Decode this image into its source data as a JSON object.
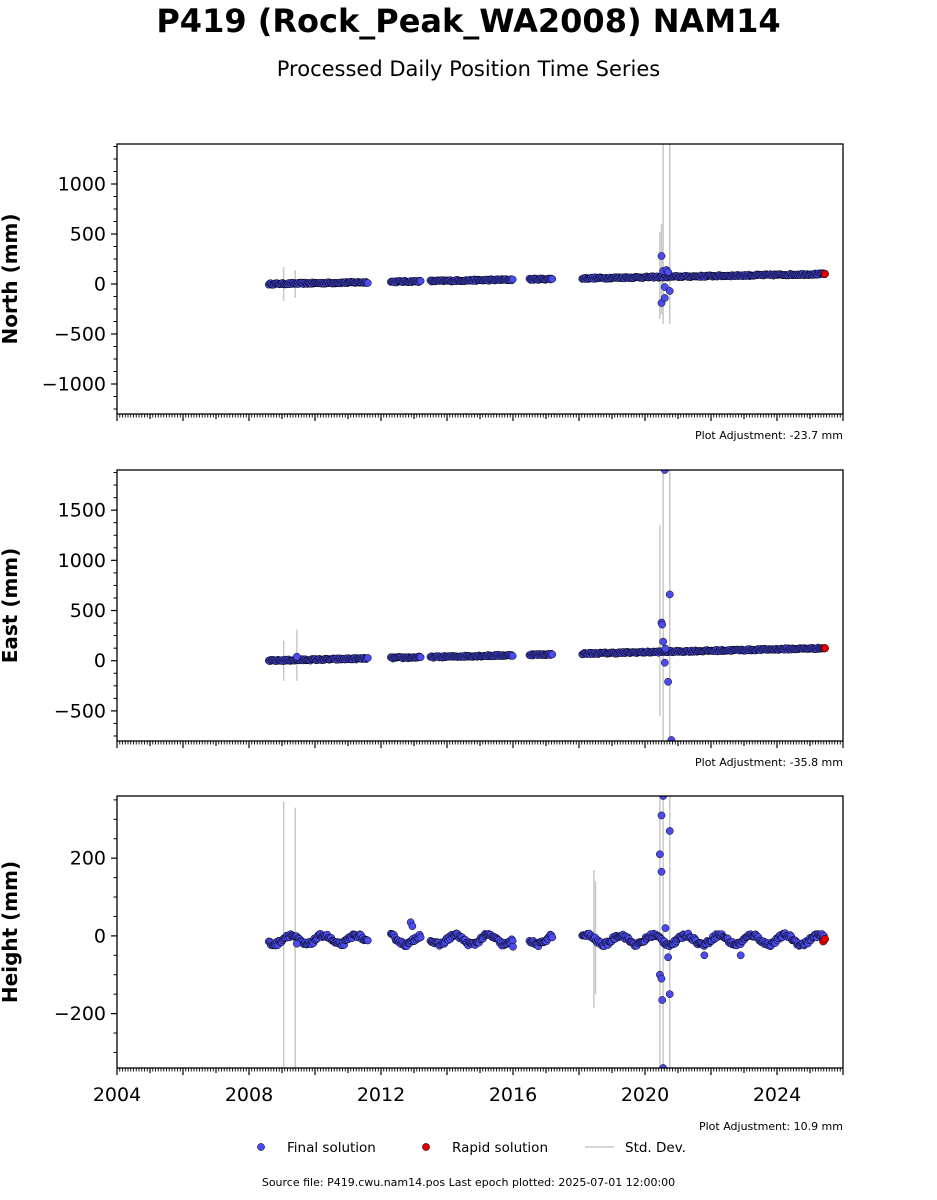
{
  "title": "P419 (Rock_Peak_WA2008) NAM14",
  "subtitle": "Processed Daily Position Time Series",
  "footer": "Source file: P419.cwu.nam14.pos  Last epoch plotted: 2025-07-01 12:00:00",
  "colors": {
    "final": "#4b4bf0",
    "rapid": "#e00000",
    "std_dev": "#c8c8c8",
    "marker_edge": "#000000"
  },
  "legend": {
    "final": "Final solution",
    "rapid": "Rapid solution",
    "std_dev": "Std. Dev."
  },
  "chart_data": [
    {
      "type": "scatter",
      "ylabel": "North (mm)",
      "xlim": [
        2004,
        2026
      ],
      "ylim": [
        -1300,
        1400
      ],
      "yticks": [
        -1000,
        -500,
        0,
        500,
        1000
      ],
      "tick_labels": [
        "−1000",
        "−500",
        "0",
        "500",
        "1000"
      ],
      "adjustment": "Plot Adjustment: -23.7 mm",
      "trend": {
        "x": [
          2008.6,
          2025.45
        ],
        "y": [
          0,
          100
        ]
      },
      "segments": [
        [
          2008.6,
          2011.6
        ],
        [
          2012.3,
          2013.2
        ],
        [
          2013.5,
          2016.0
        ],
        [
          2016.5,
          2017.2
        ],
        [
          2018.1,
          2025.45
        ]
      ],
      "outliers": [
        {
          "x": 2020.5,
          "y": 280
        },
        {
          "x": 2020.5,
          "y": -190
        },
        {
          "x": 2020.55,
          "y": 130
        },
        {
          "x": 2020.6,
          "y": -30
        },
        {
          "x": 2020.65,
          "y": 140
        },
        {
          "x": 2020.7,
          "y": 120
        },
        {
          "x": 2020.75,
          "y": -70
        },
        {
          "x": 2020.6,
          "y": -140
        }
      ],
      "stddev_bars": [
        {
          "x": 2009.05,
          "low": -170,
          "high": 170
        },
        {
          "x": 2009.4,
          "low": -140,
          "high": 140
        },
        {
          "x": 2020.45,
          "low": -350,
          "high": 520
        },
        {
          "x": 2020.55,
          "low": -400,
          "high": 1400
        },
        {
          "x": 2020.75,
          "low": -400,
          "high": 1400
        },
        {
          "x": 2020.5,
          "low": -300,
          "high": 600
        }
      ],
      "rapid": [
        {
          "x": 2025.45,
          "y": 100
        }
      ]
    },
    {
      "type": "scatter",
      "ylabel": "East (mm)",
      "xlim": [
        2004,
        2026
      ],
      "ylim": [
        -800,
        1900
      ],
      "yticks": [
        -500,
        0,
        500,
        1000,
        1500
      ],
      "tick_labels": [
        "−500",
        "0",
        "500",
        "1000",
        "1500"
      ],
      "adjustment": "Plot Adjustment: -35.8 mm",
      "trend": {
        "x": [
          2008.6,
          2025.45
        ],
        "y": [
          0,
          125
        ]
      },
      "segments": [
        [
          2008.6,
          2011.6
        ],
        [
          2012.3,
          2013.2
        ],
        [
          2013.5,
          2016.0
        ],
        [
          2016.5,
          2017.2
        ],
        [
          2018.1,
          2025.45
        ]
      ],
      "outliers": [
        {
          "x": 2020.5,
          "y": 380
        },
        {
          "x": 2020.52,
          "y": 360
        },
        {
          "x": 2020.55,
          "y": 190
        },
        {
          "x": 2020.6,
          "y": -20
        },
        {
          "x": 2020.62,
          "y": 120
        },
        {
          "x": 2020.7,
          "y": -210
        },
        {
          "x": 2020.75,
          "y": 660
        },
        {
          "x": 2020.6,
          "y": 1900
        },
        {
          "x": 2020.8,
          "y": -790
        },
        {
          "x": 2009.45,
          "y": 40
        }
      ],
      "stddev_bars": [
        {
          "x": 2009.05,
          "low": -200,
          "high": 200
        },
        {
          "x": 2009.45,
          "low": -200,
          "high": 310
        },
        {
          "x": 2020.45,
          "low": -550,
          "high": 1350
        },
        {
          "x": 2020.55,
          "low": -800,
          "high": 1900
        },
        {
          "x": 2020.75,
          "low": -800,
          "high": 1900
        }
      ],
      "rapid": [
        {
          "x": 2025.45,
          "y": 125
        }
      ]
    },
    {
      "type": "scatter",
      "ylabel": "Height (mm)",
      "xlim": [
        2004,
        2026
      ],
      "ylim": [
        -340,
        360
      ],
      "yticks": [
        -200,
        0,
        200
      ],
      "tick_labels": [
        "−200",
        "0",
        "200"
      ],
      "xticks": [
        2004,
        2008,
        2012,
        2016,
        2020,
        2024
      ],
      "xtick_labels": [
        "2004",
        "2008",
        "2012",
        "2016",
        "2020",
        "2024"
      ],
      "adjustment": "Plot Adjustment: 10.9 mm",
      "trend": {
        "x": [
          2008.6,
          2025.45
        ],
        "y": [
          -10,
          -10
        ]
      },
      "seasonal_amplitude": 12,
      "segments": [
        [
          2008.6,
          2011.6
        ],
        [
          2012.3,
          2013.2
        ],
        [
          2013.5,
          2016.0
        ],
        [
          2016.5,
          2017.2
        ],
        [
          2018.1,
          2025.45
        ]
      ],
      "outliers": [
        {
          "x": 2009.45,
          "y": -20
        },
        {
          "x": 2012.9,
          "y": 35
        },
        {
          "x": 2012.95,
          "y": 25
        },
        {
          "x": 2020.45,
          "y": 210
        },
        {
          "x": 2020.5,
          "y": 165
        },
        {
          "x": 2020.5,
          "y": 310
        },
        {
          "x": 2020.55,
          "y": 360
        },
        {
          "x": 2020.75,
          "y": 270
        },
        {
          "x": 2020.45,
          "y": -100
        },
        {
          "x": 2020.5,
          "y": -110
        },
        {
          "x": 2020.52,
          "y": -165
        },
        {
          "x": 2020.7,
          "y": -55
        },
        {
          "x": 2020.75,
          "y": -150
        },
        {
          "x": 2020.55,
          "y": -340
        },
        {
          "x": 2020.62,
          "y": 20
        },
        {
          "x": 2021.8,
          "y": -50
        },
        {
          "x": 2022.9,
          "y": -50
        },
        {
          "x": 2016.0,
          "y": -28
        }
      ],
      "stddev_bars": [
        {
          "x": 2009.05,
          "low": -340,
          "high": 345
        },
        {
          "x": 2009.4,
          "low": -340,
          "high": 330
        },
        {
          "x": 2018.45,
          "low": -185,
          "high": 170
        },
        {
          "x": 2018.5,
          "low": -150,
          "high": 140
        },
        {
          "x": 2020.45,
          "low": -340,
          "high": 360
        },
        {
          "x": 2020.55,
          "low": -340,
          "high": 360
        },
        {
          "x": 2020.75,
          "low": -340,
          "high": 360
        }
      ],
      "rapid": [
        {
          "x": 2025.4,
          "y": -14
        },
        {
          "x": 2025.45,
          "y": -8
        }
      ]
    }
  ]
}
